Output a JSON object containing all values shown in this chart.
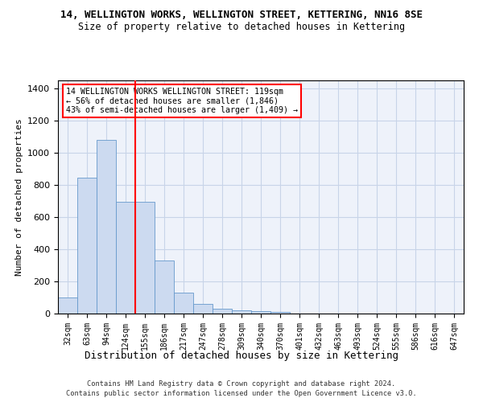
{
  "title": "14, WELLINGTON WORKS, WELLINGTON STREET, KETTERING, NN16 8SE",
  "subtitle": "Size of property relative to detached houses in Kettering",
  "xlabel": "Distribution of detached houses by size in Kettering",
  "ylabel": "Number of detached properties",
  "bar_color": "#ccdaf0",
  "bar_edge_color": "#6699cc",
  "grid_color": "#c8d4e8",
  "background_color": "#eef2fa",
  "categories": [
    "32sqm",
    "63sqm",
    "94sqm",
    "124sqm",
    "155sqm",
    "186sqm",
    "217sqm",
    "247sqm",
    "278sqm",
    "309sqm",
    "340sqm",
    "370sqm",
    "401sqm",
    "432sqm",
    "463sqm",
    "493sqm",
    "524sqm",
    "555sqm",
    "586sqm",
    "616sqm",
    "647sqm"
  ],
  "values": [
    100,
    843,
    1080,
    695,
    695,
    330,
    130,
    60,
    30,
    20,
    15,
    10,
    0,
    0,
    0,
    0,
    0,
    0,
    0,
    0,
    0
  ],
  "ylim": [
    0,
    1450
  ],
  "yticks": [
    0,
    200,
    400,
    600,
    800,
    1000,
    1200,
    1400
  ],
  "property_line_x": 3.5,
  "annotation_title": "14 WELLINGTON WORKS WELLINGTON STREET: 119sqm",
  "annotation_line1": "← 56% of detached houses are smaller (1,846)",
  "annotation_line2": "43% of semi-detached houses are larger (1,409) →",
  "footer_line1": "Contains HM Land Registry data © Crown copyright and database right 2024.",
  "footer_line2": "Contains public sector information licensed under the Open Government Licence v3.0."
}
